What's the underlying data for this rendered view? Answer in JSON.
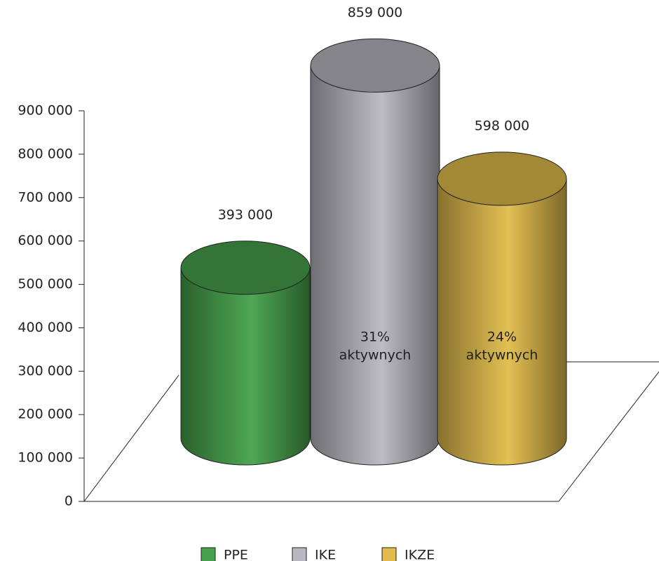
{
  "chart_data": {
    "type": "cylinder-bar",
    "categories": [
      "PPE",
      "IKE",
      "IKZE"
    ],
    "values": [
      393000,
      859000,
      598000
    ],
    "value_labels": [
      "393 000",
      "859 000",
      "598 000"
    ],
    "colors": [
      "#46a24b",
      "#b9b8c1",
      "#e3bd4b"
    ],
    "ylim": [
      0,
      900000
    ],
    "yticks": [
      0,
      {
        "value": 100000,
        "label": "100 000"
      },
      {
        "value": 200000,
        "label": "200 000"
      },
      {
        "value": 300000,
        "label": "300 000"
      },
      {
        "value": 400000,
        "label": "400 000"
      },
      {
        "value": 500000,
        "label": "500 000"
      },
      {
        "value": 600000,
        "label": "600 000"
      },
      {
        "value": 700000,
        "label": "700 000"
      },
      {
        "value": 800000,
        "label": "800 000"
      },
      {
        "value": 900000,
        "label": "900 000"
      }
    ],
    "annotations": [
      {
        "category": "IKE",
        "text": [
          "31%",
          "aktywnych"
        ]
      },
      {
        "category": "IKZE",
        "text": [
          "24%",
          "aktywnych"
        ]
      }
    ]
  }
}
